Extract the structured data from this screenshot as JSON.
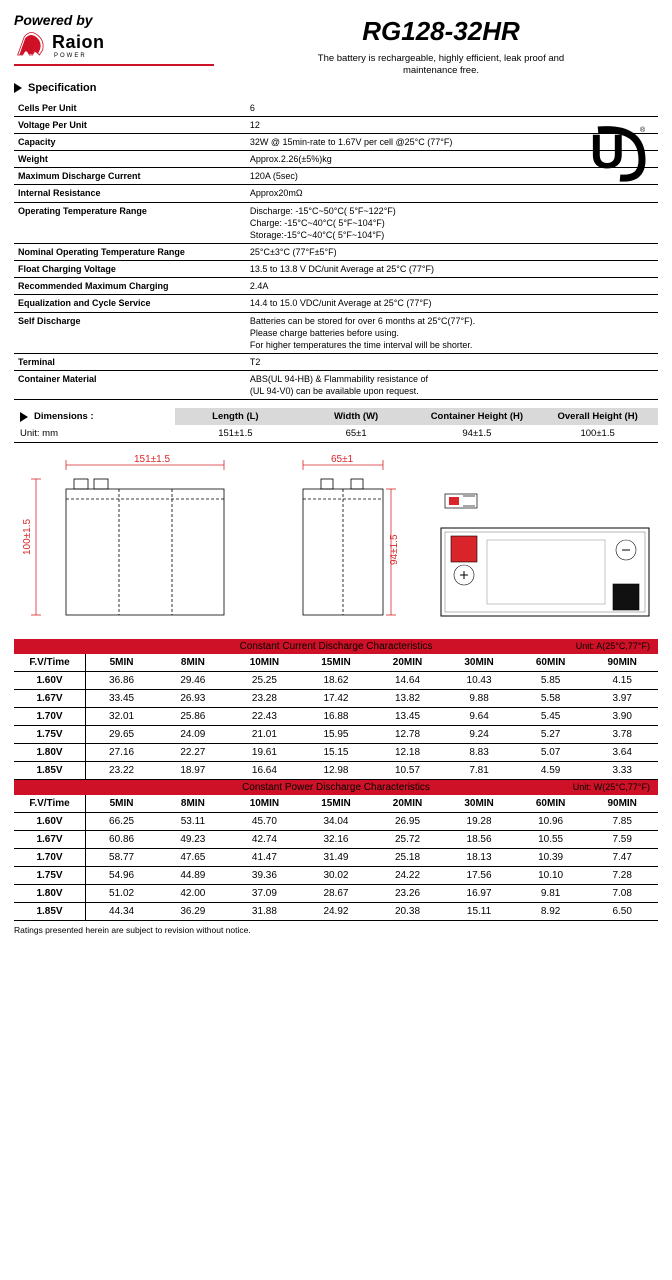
{
  "header": {
    "powered_by": "Powered by",
    "logo_text": "Raion",
    "logo_sub": "POWER",
    "model": "RG128-32HR",
    "subtitle_l1": "The battery is rechargeable, highly efficient, leak proof and",
    "subtitle_l2": "maintenance free."
  },
  "sections": {
    "spec": "Specification",
    "dims": "Dimensions :"
  },
  "spec_rows": [
    {
      "label": "Cells Per Unit",
      "value": "6"
    },
    {
      "label": "Voltage Per Unit",
      "value": "12"
    },
    {
      "label": "Capacity",
      "value": "32W @ 15min-rate to 1.67V per cell @25°C (77°F)"
    },
    {
      "label": "Weight",
      "value": "Approx.2.26(±5%)kg"
    },
    {
      "label": "Maximum Discharge Current",
      "value": "120A (5sec)"
    },
    {
      "label": "Internal Resistance",
      "value": "Approx20mΩ"
    },
    {
      "label": "Operating Temperature Range",
      "value": "Discharge: -15°C~50°C( 5°F~122°F)\nCharge: -15°C~40°C( 5°F~104°F)\nStorage:-15°C~40°C( 5°F~104°F)"
    },
    {
      "label": "Nominal Operating Temperature Range",
      "value": "25°C±3°C (77°F±5°F)"
    },
    {
      "label": "Float Charging Voltage",
      "value": "13.5 to 13.8 V DC/unit Average at 25°C (77°F)"
    },
    {
      "label": "Recommended Maximum Charging",
      "value": "2.4A"
    },
    {
      "label": "Equalization and Cycle Service",
      "value": "14.4 to 15.0 VDC/unit Average at 25°C (77°F)"
    },
    {
      "label": "Self Discharge",
      "value": "Batteries can be stored for over 6 months at 25°C(77°F).\nPlease charge batteries before using.\nFor higher temperatures the time interval will be shorter."
    },
    {
      "label": "Terminal",
      "value": "T2"
    },
    {
      "label": "Container Material",
      "value": "ABS(UL 94-HB) & Flammability resistance of\n(UL 94-V0) can be available upon request."
    }
  ],
  "dims": {
    "unit_label": "Unit: mm",
    "headers": [
      "Length (L)",
      "Width (W)",
      "Container Height (H)",
      "Overall Height (H)"
    ],
    "values": [
      "151±1.5",
      "65±1",
      "94±1.5",
      "100±1.5"
    ],
    "length_label": "151±1.5",
    "width_label": "65±1",
    "h1_label": "100±1.5",
    "h2_label": "94±1.5"
  },
  "tables": {
    "current": {
      "title": "Constant Current Discharge Characteristics",
      "unit": "Unit: A(25°C,77°F)",
      "time_label": "F.V/Time",
      "cols": [
        "5MIN",
        "8MIN",
        "10MIN",
        "15MIN",
        "20MIN",
        "30MIN",
        "60MIN",
        "90MIN"
      ],
      "rows": [
        {
          "v": "1.60V",
          "d": [
            "36.86",
            "29.46",
            "25.25",
            "18.62",
            "14.64",
            "10.43",
            "5.85",
            "4.15"
          ]
        },
        {
          "v": "1.67V",
          "d": [
            "33.45",
            "26.93",
            "23.28",
            "17.42",
            "13.82",
            "9.88",
            "5.58",
            "3.97"
          ]
        },
        {
          "v": "1.70V",
          "d": [
            "32.01",
            "25.86",
            "22.43",
            "16.88",
            "13.45",
            "9.64",
            "5.45",
            "3.90"
          ]
        },
        {
          "v": "1.75V",
          "d": [
            "29.65",
            "24.09",
            "21.01",
            "15.95",
            "12.78",
            "9.24",
            "5.27",
            "3.78"
          ]
        },
        {
          "v": "1.80V",
          "d": [
            "27.16",
            "22.27",
            "19.61",
            "15.15",
            "12.18",
            "8.83",
            "5.07",
            "3.64"
          ]
        },
        {
          "v": "1.85V",
          "d": [
            "23.22",
            "18.97",
            "16.64",
            "12.98",
            "10.57",
            "7.81",
            "4.59",
            "3.33"
          ]
        }
      ]
    },
    "power": {
      "title": "Constant Power Discharge Characteristics",
      "unit": "Unit: W(25°C,77°F)",
      "time_label": "F.V/Time",
      "cols": [
        "5MIN",
        "8MIN",
        "10MIN",
        "15MIN",
        "20MIN",
        "30MIN",
        "60MIN",
        "90MIN"
      ],
      "rows": [
        {
          "v": "1.60V",
          "d": [
            "66.25",
            "53.11",
            "45.70",
            "34.04",
            "26.95",
            "19.28",
            "10.96",
            "7.85"
          ]
        },
        {
          "v": "1.67V",
          "d": [
            "60.86",
            "49.23",
            "42.74",
            "32.16",
            "25.72",
            "18.56",
            "10.55",
            "7.59"
          ]
        },
        {
          "v": "1.70V",
          "d": [
            "58.77",
            "47.65",
            "41.47",
            "31.49",
            "25.18",
            "18.13",
            "10.39",
            "7.47"
          ]
        },
        {
          "v": "1.75V",
          "d": [
            "54.96",
            "44.89",
            "39.36",
            "30.02",
            "24.22",
            "17.56",
            "10.10",
            "7.28"
          ]
        },
        {
          "v": "1.80V",
          "d": [
            "51.02",
            "42.00",
            "37.09",
            "28.67",
            "23.26",
            "16.97",
            "9.81",
            "7.08"
          ]
        },
        {
          "v": "1.85V",
          "d": [
            "44.34",
            "36.29",
            "31.88",
            "24.92",
            "20.38",
            "15.11",
            "8.92",
            "6.50"
          ]
        }
      ]
    }
  },
  "footnote": "Ratings presented herein are subject to revision without notice.",
  "colors": {
    "brand_red": "#ce1126",
    "header_grey": "#d9d9d9",
    "dim_red": "#d9252a"
  }
}
